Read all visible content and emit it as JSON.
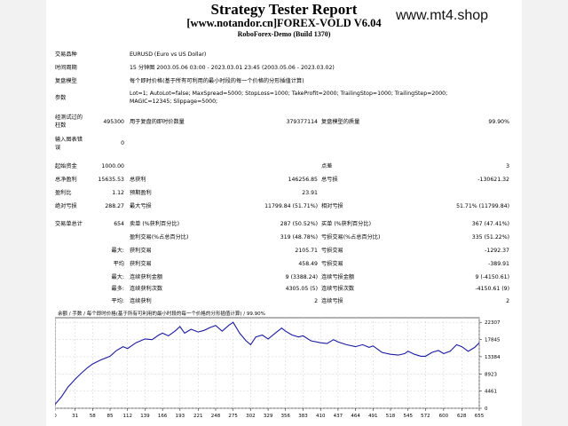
{
  "header": {
    "title": "Strategy Tester Report",
    "subtitle": "[www.notandor.cn]FOREX-VOLD V6.04",
    "build": "RoboForex-Demo (Build 1370)",
    "watermark": "www.mt4.shop"
  },
  "settings": {
    "symbol_label": "交易品种",
    "symbol_value": "EURUSD (Euro vs US Dollar)",
    "period_label": "时间周期",
    "period_value": "15 分钟图 2003.05.06 03:00 - 2023.03.01 23:45 (2003.05.06 - 2023.03.02)",
    "model_label": "复盘模型",
    "model_value": "每个即时价格(基于所有可利用的最小时段的每一个价格的分形插值计算)",
    "params_label": "参数",
    "params_line1": "Lot=1; AutoLot=false; MaxSpread=5000; StopLoss=1000; TakeProfit=2000; TrailingStop=1000; TrailingStep=2000;",
    "params_line2": "MAGIC=12345; Slippage=5000;"
  },
  "quality": {
    "bars_label_1": "经测试过的",
    "bars_label_2": "柱数",
    "bars_value": "495300",
    "ticks_label": "用于复盘的即时价数量",
    "ticks_value": "379377114",
    "quality_label": "复盘模型的质量",
    "quality_value": "99.90%",
    "errors_label_1": "输入图表错",
    "errors_label_2": "误",
    "errors_value": "0"
  },
  "stats": {
    "deposit_label": "起始资金",
    "deposit_value": "1000.00",
    "spread_label": "点差",
    "spread_value": "3",
    "net_label": "总净盈利",
    "net_value": "15635.53",
    "gross_profit_label": "总获利",
    "gross_profit_value": "146256.85",
    "gross_loss_label": "总亏损",
    "gross_loss_value": "-130621.32",
    "pf_label": "盈利比",
    "pf_value": "1.12",
    "payoff_label": "预期盈利",
    "payoff_value": "23.91",
    "abs_dd_label": "绝对亏损",
    "abs_dd_value": "288.27",
    "max_dd_label": "最大亏损",
    "max_dd_value": "11799.84 (51.71%)",
    "rel_dd_label": "相对亏损",
    "rel_dd_value": "51.71% (11799.84)"
  },
  "trades": {
    "total_label": "交易单总计",
    "total_value": "654",
    "short_label": "卖单 (%获利百分比)",
    "short_value": "287 (50.52%)",
    "long_label": "买单 (%获利百分比)",
    "long_value": "367 (47.41%)",
    "profit_trades_label": "盈利交易(%占总百分比)",
    "profit_trades_value": "319 (48.78%)",
    "loss_trades_label": "亏损交易(%占总百分比)",
    "loss_trades_value": "335 (51.22%)",
    "largest_prefix": "最大:",
    "largest_profit_label": "获利交易",
    "largest_profit_value": "2105.71",
    "largest_loss_label": "亏损交易",
    "largest_loss_value": "-1292.37",
    "average_prefix": "平均",
    "avg_profit_label": "获利交易",
    "avg_profit_value": "458.49",
    "avg_loss_label": "亏损交易",
    "avg_loss_value": "-389.91",
    "max_consec_prefix": "最大:",
    "max_consec_wins_label": "连续获利金额",
    "max_consec_wins_value": "9 (3388.24)",
    "max_consec_losses_label": "连续亏损金额",
    "max_consec_losses_value": "9 (-4150.61)",
    "maximal_prefix": "最多:",
    "maximal_wins_label": "连续获利次数",
    "maximal_wins_value": "4305.05 (5)",
    "maximal_losses_label": "连续亏损次数",
    "maximal_losses_value": "-4150.61 (9)",
    "avg_consec_prefix": "平均:",
    "avg_consec_wins_label": "连续获利",
    "avg_consec_wins_value": "2",
    "avg_consec_losses_label": "连续亏损",
    "avg_consec_losses_value": "2"
  },
  "chart_data": {
    "type": "line",
    "legend": "余额 / 手数 / 每个即时价格(基于所有可利用的最小时段的每一个价格的分形插值计算) / 99.90%",
    "line_color": "#1a1aa0",
    "yticks": [
      0,
      4461,
      8923,
      13384,
      17845,
      22307
    ],
    "xticks": [
      0,
      31,
      58,
      85,
      112,
      139,
      166,
      193,
      221,
      248,
      275,
      302,
      329,
      356,
      383,
      410,
      437,
      464,
      491,
      518,
      545,
      572,
      600,
      628,
      655
    ],
    "xlim": [
      0,
      655
    ],
    "ylim": [
      0,
      23500
    ],
    "x": [
      0,
      10,
      20,
      31,
      40,
      50,
      58,
      70,
      85,
      95,
      105,
      112,
      125,
      139,
      150,
      160,
      166,
      175,
      185,
      193,
      200,
      210,
      221,
      230,
      240,
      248,
      258,
      268,
      275,
      285,
      295,
      302,
      310,
      320,
      329,
      340,
      350,
      356,
      366,
      376,
      383,
      395,
      410,
      420,
      430,
      437,
      450,
      464,
      475,
      485,
      491,
      505,
      518,
      530,
      540,
      545,
      555,
      565,
      572,
      582,
      592,
      600,
      610,
      620,
      628,
      638,
      648,
      655
    ],
    "y": [
      1000,
      3000,
      5500,
      7500,
      9000,
      10500,
      11500,
      12500,
      13500,
      15000,
      16000,
      15500,
      17000,
      18000,
      17800,
      19000,
      19500,
      18800,
      20000,
      21200,
      19500,
      20500,
      19800,
      20200,
      21000,
      21500,
      20000,
      21500,
      22300,
      19500,
      17500,
      16500,
      18500,
      19000,
      18000,
      19500,
      20800,
      20000,
      19000,
      18500,
      18800,
      17500,
      17000,
      16800,
      17800,
      17200,
      16500,
      16000,
      16500,
      15800,
      16200,
      14500,
      14000,
      13800,
      14200,
      14800,
      14000,
      13500,
      13500,
      14500,
      15000,
      14200,
      14800,
      16500,
      16000,
      14800,
      15800,
      17000
    ]
  }
}
